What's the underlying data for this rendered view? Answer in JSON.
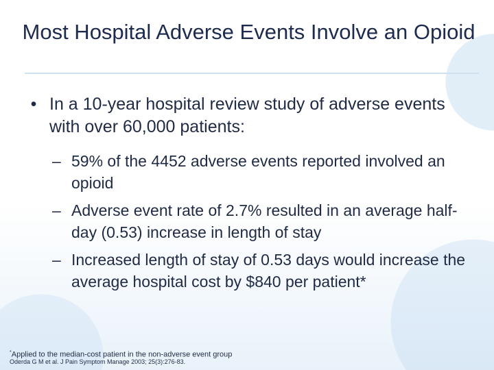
{
  "slide": {
    "title": "Most Hospital Adverse Events Involve an Opioid",
    "bullet": {
      "marker": "•",
      "text": "In a 10-year hospital review study of adverse events with over 60,000 patients:"
    },
    "subbullets": [
      {
        "marker": "–",
        "text": "59% of the 4452 adverse events reported involved an opioid"
      },
      {
        "marker": "–",
        "text": "Adverse event rate of 2.7% resulted in an average half-day (0.53) increase in length of stay"
      },
      {
        "marker": "–",
        "text": "Increased length of stay of 0.53 days would increase the average hospital cost by $840 per patient*"
      }
    ],
    "footnote_mark": "*",
    "footnote": "Applied to the median-cost patient in the non-adverse event group",
    "citation": "Oderda G M et al. J Pain Symptom Manage 2003; 25(3):276-83."
  }
}
